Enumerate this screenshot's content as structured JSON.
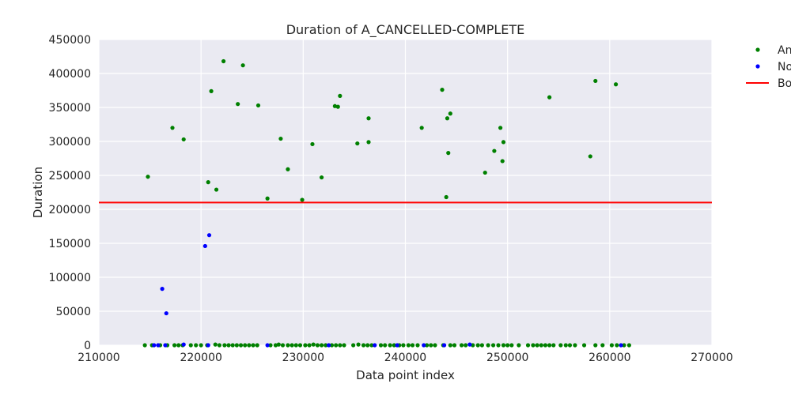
{
  "chart_data": {
    "type": "scatter",
    "title": "Duration of A_CANCELLED-COMPLETE",
    "xlabel": "Data point index",
    "ylabel": "Duration",
    "xlim": [
      210000,
      270000
    ],
    "ylim": [
      0,
      450000
    ],
    "xticks": [
      "210000",
      "220000",
      "230000",
      "240000",
      "250000",
      "260000",
      "270000"
    ],
    "yticks": [
      "0",
      "50000",
      "100000",
      "150000",
      "200000",
      "250000",
      "300000",
      "350000",
      "400000",
      "450000"
    ],
    "grid": true,
    "legend_position": "outside-right",
    "colors": {
      "anomaly": "#008000",
      "normal": "#0000ff",
      "boundary": "#ff0000",
      "plot_bg": "#eaeaf2",
      "grid": "#ffffff"
    },
    "threshold": 210000,
    "series": [
      {
        "name": "An",
        "color": "#008000",
        "points": [
          [
            214800,
            248000
          ],
          [
            217200,
            320000
          ],
          [
            218300,
            303000
          ],
          [
            220700,
            240000
          ],
          [
            221000,
            374000
          ],
          [
            221500,
            229000
          ],
          [
            222200,
            418000
          ],
          [
            223600,
            355000
          ],
          [
            224100,
            412000
          ],
          [
            225600,
            353000
          ],
          [
            226500,
            216000
          ],
          [
            227800,
            304000
          ],
          [
            228500,
            259000
          ],
          [
            229900,
            214000
          ],
          [
            230900,
            296000
          ],
          [
            231800,
            247000
          ],
          [
            233100,
            352000
          ],
          [
            233400,
            351000
          ],
          [
            233600,
            367000
          ],
          [
            235300,
            297000
          ],
          [
            236400,
            334000
          ],
          [
            236400,
            299000
          ],
          [
            241600,
            320000
          ],
          [
            243600,
            376000
          ],
          [
            244000,
            218000
          ],
          [
            244100,
            334000
          ],
          [
            244200,
            283000
          ],
          [
            244400,
            341000
          ],
          [
            247800,
            254000
          ],
          [
            248700,
            286000
          ],
          [
            249300,
            320000
          ],
          [
            249500,
            271000
          ],
          [
            249600,
            299000
          ],
          [
            254100,
            365000
          ],
          [
            258100,
            278000
          ],
          [
            258600,
            389000
          ],
          [
            260600,
            384000
          ],
          [
            214500,
            0
          ],
          [
            215200,
            0
          ],
          [
            216000,
            0
          ],
          [
            216700,
            0
          ],
          [
            217400,
            0
          ],
          [
            217800,
            0
          ],
          [
            218200,
            0
          ],
          [
            219000,
            0
          ],
          [
            219500,
            0
          ],
          [
            220000,
            0
          ],
          [
            220600,
            0
          ],
          [
            221400,
            1000
          ],
          [
            221800,
            0
          ],
          [
            222300,
            0
          ],
          [
            222700,
            0
          ],
          [
            223100,
            0
          ],
          [
            223500,
            0
          ],
          [
            223900,
            0
          ],
          [
            224300,
            0
          ],
          [
            224700,
            0
          ],
          [
            225100,
            0
          ],
          [
            225500,
            0
          ],
          [
            226800,
            0
          ],
          [
            227300,
            0
          ],
          [
            227600,
            1000
          ],
          [
            228000,
            0
          ],
          [
            228500,
            0
          ],
          [
            228900,
            0
          ],
          [
            229300,
            0
          ],
          [
            229700,
            0
          ],
          [
            230200,
            0
          ],
          [
            230600,
            0
          ],
          [
            231000,
            1000
          ],
          [
            231400,
            0
          ],
          [
            231800,
            0
          ],
          [
            232200,
            0
          ],
          [
            232800,
            0
          ],
          [
            233200,
            0
          ],
          [
            233600,
            0
          ],
          [
            234000,
            0
          ],
          [
            234900,
            0
          ],
          [
            235400,
            1000
          ],
          [
            235900,
            0
          ],
          [
            236300,
            0
          ],
          [
            236700,
            0
          ],
          [
            237600,
            0
          ],
          [
            238000,
            0
          ],
          [
            238500,
            0
          ],
          [
            238900,
            0
          ],
          [
            239400,
            0
          ],
          [
            239800,
            0
          ],
          [
            240300,
            0
          ],
          [
            240700,
            0
          ],
          [
            241200,
            0
          ],
          [
            242100,
            0
          ],
          [
            242500,
            0
          ],
          [
            242900,
            0
          ],
          [
            243700,
            0
          ],
          [
            244400,
            0
          ],
          [
            244800,
            0
          ],
          [
            245500,
            0
          ],
          [
            245900,
            0
          ],
          [
            246600,
            0
          ],
          [
            247100,
            0
          ],
          [
            247500,
            0
          ],
          [
            248100,
            0
          ],
          [
            248600,
            0
          ],
          [
            249100,
            0
          ],
          [
            249600,
            0
          ],
          [
            250000,
            0
          ],
          [
            250400,
            0
          ],
          [
            251100,
            0
          ],
          [
            252000,
            0
          ],
          [
            252500,
            0
          ],
          [
            252900,
            0
          ],
          [
            253300,
            0
          ],
          [
            253700,
            0
          ],
          [
            254100,
            0
          ],
          [
            254500,
            0
          ],
          [
            255200,
            0
          ],
          [
            255700,
            0
          ],
          [
            256100,
            0
          ],
          [
            256600,
            0
          ],
          [
            257500,
            0
          ],
          [
            258600,
            0
          ],
          [
            259300,
            0
          ],
          [
            260200,
            0
          ],
          [
            260700,
            0
          ],
          [
            261400,
            0
          ],
          [
            261900,
            0
          ]
        ]
      },
      {
        "name": "No",
        "color": "#0000ff",
        "points": [
          [
            216200,
            83000
          ],
          [
            216600,
            47000
          ],
          [
            220400,
            146000
          ],
          [
            220800,
            162000
          ],
          [
            215400,
            0
          ],
          [
            215800,
            0
          ],
          [
            216500,
            0
          ],
          [
            218300,
            1000
          ],
          [
            220700,
            0
          ],
          [
            226500,
            0
          ],
          [
            232500,
            0
          ],
          [
            237000,
            0
          ],
          [
            239200,
            0
          ],
          [
            241800,
            0
          ],
          [
            243800,
            0
          ],
          [
            246300,
            1000
          ],
          [
            261100,
            0
          ]
        ]
      },
      {
        "name": "Bo",
        "color": "#ff0000",
        "type": "hline",
        "y": 210000
      }
    ]
  }
}
